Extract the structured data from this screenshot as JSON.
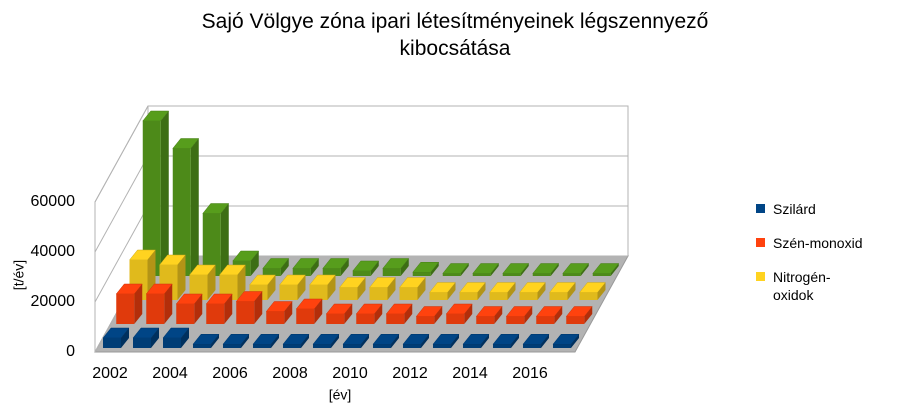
{
  "chart_data": {
    "type": "bar3d",
    "title": "Sajó Völgye zóna ipari létesítményeinek légszennyező kibocsátása",
    "y_label": "[t/év]",
    "x_label": "[év]",
    "categories": [
      "2002",
      null,
      "2004",
      null,
      "2006",
      null,
      "2008",
      null,
      "2010",
      null,
      "2012",
      null,
      "2014",
      null,
      "2016",
      null
    ],
    "series": [
      {
        "name": "Szilárd",
        "color": "#004586",
        "values": [
          4000,
          4000,
          4000,
          1500,
          1500,
          1500,
          1500,
          1500,
          1500,
          1500,
          1500,
          1500,
          1500,
          1500,
          1500,
          1500
        ]
      },
      {
        "name": "Szén-monoxid",
        "color": "#ff420e",
        "values": [
          12000,
          12000,
          8000,
          8000,
          9000,
          5000,
          6000,
          4000,
          4000,
          4000,
          3000,
          4000,
          3000,
          3000,
          3000,
          3000
        ]
      },
      {
        "name": "Nitrogén-oxidok",
        "color": "#ffd320",
        "values": [
          16000,
          14000,
          10000,
          10000,
          6000,
          6000,
          6000,
          5000,
          5000,
          5000,
          3000,
          3000,
          3000,
          3000,
          3000,
          3000
        ]
      },
      {
        "color": "#579d1c",
        "values": [
          62000,
          51000,
          25000,
          6000,
          3000,
          3000,
          3000,
          2000,
          3000,
          1500,
          1000,
          1000,
          1000,
          1000,
          1000,
          1000
        ]
      }
    ],
    "ylim": [
      0,
      60000
    ],
    "yticks": [
      0,
      20000,
      40000,
      60000
    ],
    "grid": true,
    "legend": "right"
  }
}
